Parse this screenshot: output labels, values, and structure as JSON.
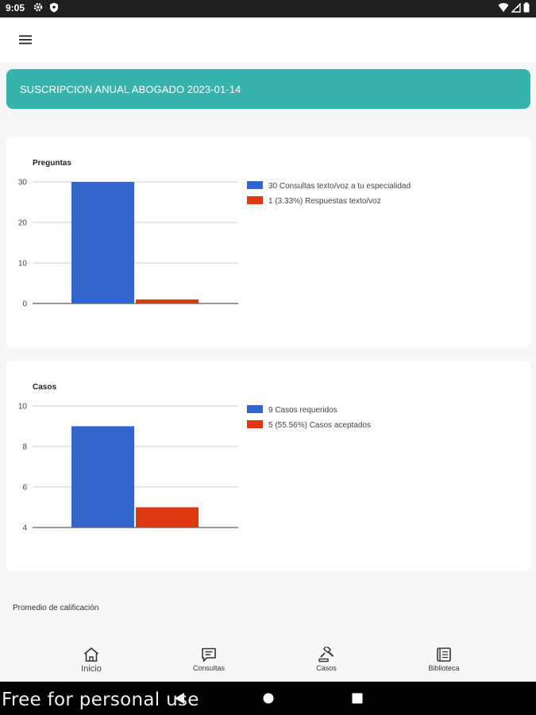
{
  "status_bar": {
    "time": "9:05",
    "left_icons": [
      "gear-icon",
      "shield-icon"
    ],
    "right_icons": [
      "wifi-icon",
      "signal-icon",
      "battery-icon"
    ]
  },
  "app_bar": {
    "menu_icon": "hamburger-menu-icon"
  },
  "banner": {
    "text": "SUSCRIPCION ANUAL ABOGADO 2023-01-14",
    "color": "#38b3ac"
  },
  "chart_data": [
    {
      "type": "bar",
      "title": "Preguntas",
      "ylim": [
        0,
        30
      ],
      "yticks": [
        0,
        10,
        20,
        30
      ],
      "grid": true,
      "legend_position": "right",
      "series": [
        {
          "name": "30 Consultas texto/voz a tu especialidad",
          "value": 30,
          "color": "#3366cc"
        },
        {
          "name": "1 (3.33%) Respuestas texto/voz",
          "value": 1,
          "color": "#dc3912"
        }
      ]
    },
    {
      "type": "bar",
      "title": "Casos",
      "ylim": [
        4,
        10
      ],
      "yticks": [
        4,
        6,
        8,
        10
      ],
      "grid": true,
      "legend_position": "right",
      "series": [
        {
          "name": "9 Casos requeridos",
          "value": 9,
          "color": "#3366cc"
        },
        {
          "name": "5 (55.56%) Casos aceptados",
          "value": 5,
          "color": "#dc3912"
        }
      ]
    }
  ],
  "rating": {
    "label": "Promedio de calificación"
  },
  "bottom_nav": {
    "items": [
      {
        "label": "Inicio",
        "icon": "home-icon"
      },
      {
        "label": "Consultas",
        "icon": "chat-icon"
      },
      {
        "label": "Casos",
        "icon": "gavel-icon"
      },
      {
        "label": "Biblioteca",
        "icon": "book-icon"
      }
    ]
  },
  "system_nav": {
    "buttons": [
      "back-icon",
      "home-circle-icon",
      "recents-icon"
    ]
  },
  "watermark": {
    "text": "Free for personal use"
  }
}
